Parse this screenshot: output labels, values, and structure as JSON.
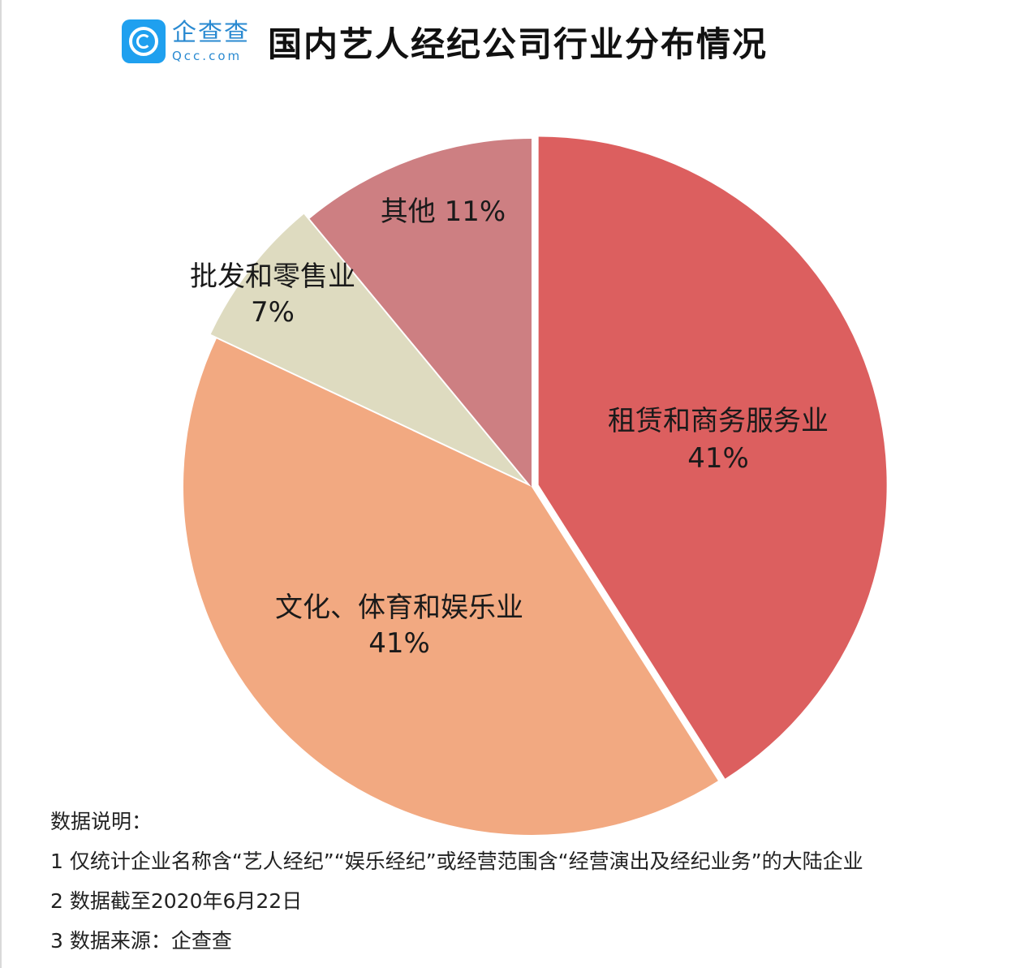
{
  "header": {
    "logo_cn": "企查查",
    "logo_en": "Qcc.com",
    "title": "国内艺人经纪公司行业分布情况"
  },
  "chart_data": {
    "type": "pie",
    "title": "国内艺人经纪公司行业分布情况",
    "start": "12 o'clock",
    "direction": "clockwise",
    "slices": [
      {
        "label": "租赁和商务服务业",
        "percent_label": "41%",
        "value": 41,
        "color": "#dc5f5f",
        "exploded": true
      },
      {
        "label": "文化、体育和娱乐业",
        "percent_label": "41%",
        "value": 41,
        "color": "#f2a981",
        "exploded": false
      },
      {
        "label": "批发和零售业",
        "percent_label": "7%",
        "value": 7,
        "color": "#dedbc0",
        "exploded": true
      },
      {
        "label": "其他",
        "percent_label": "11%",
        "value": 11,
        "color": "#cd7f82",
        "exploded": false
      }
    ]
  },
  "notes": {
    "heading": "数据说明：",
    "line1": "1 仅统计企业名称含“艺人经纪”“娱乐经纪”或经营范围含“经营演出及经纪业务”的大陆企业",
    "line2": "2 数据截至2020年6月22日",
    "line3": "3 数据来源：企查查"
  }
}
